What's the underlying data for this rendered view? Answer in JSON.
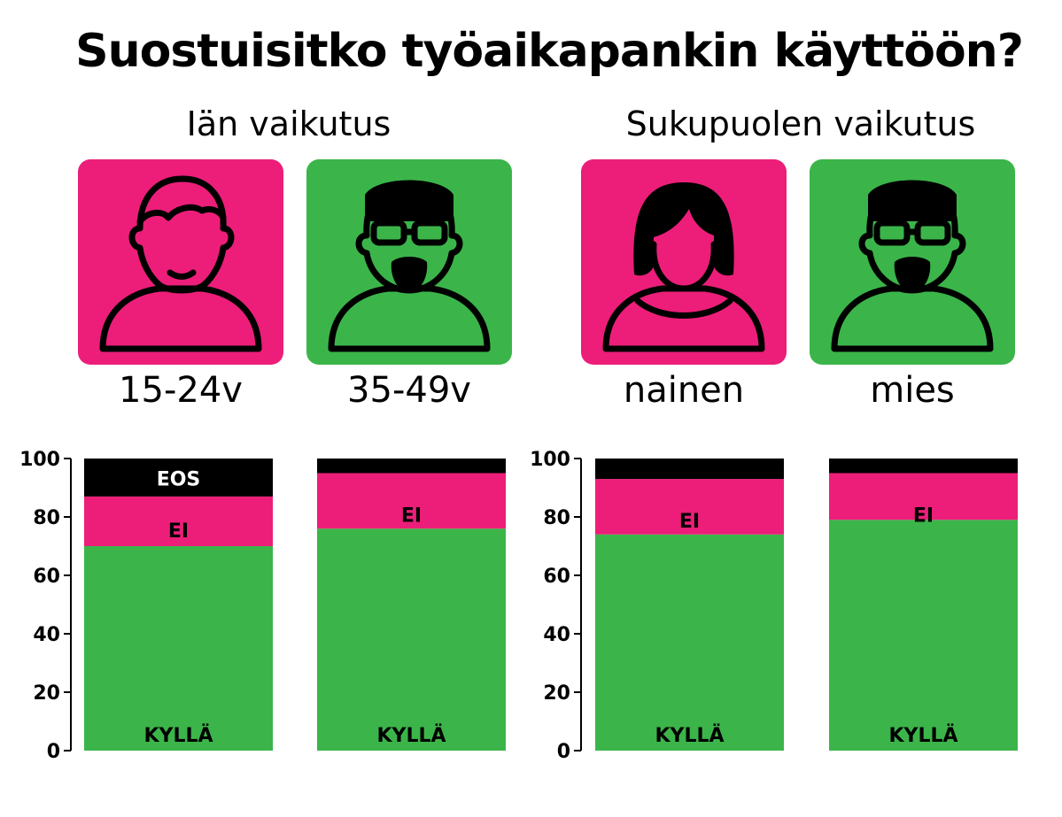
{
  "title": "Suostuisitko työaikapankin käyttöön?",
  "sections": [
    {
      "title": "Iän vaikutus"
    },
    {
      "title": "Sukupuolen vaikutus"
    }
  ],
  "groups": [
    {
      "label": "15-24v",
      "icon": "young-person-icon",
      "color": "#ec1e79"
    },
    {
      "label": "35-49v",
      "icon": "bearded-man-glasses-icon",
      "color": "#3bb54a"
    },
    {
      "label": "nainen",
      "icon": "woman-icon",
      "color": "#ec1e79"
    },
    {
      "label": "mies",
      "icon": "bearded-man-glasses-icon",
      "color": "#3bb54a"
    }
  ],
  "colors": {
    "kylla": "#3bb54a",
    "ei": "#ec1e79",
    "eos": "#000000"
  },
  "chart_data": {
    "type": "bar",
    "stacked": true,
    "categories": [
      "15-24v",
      "35-49v",
      "nainen",
      "mies"
    ],
    "series": [
      {
        "name": "KYLLÄ",
        "values": [
          70,
          76,
          74,
          79
        ]
      },
      {
        "name": "EI",
        "values": [
          17,
          19,
          19,
          16
        ]
      },
      {
        "name": "EOS",
        "values": [
          13,
          5,
          7,
          5
        ]
      }
    ],
    "segment_labels": [
      [
        "KYLLÄ",
        "EI",
        "EOS"
      ],
      [
        "KYLLÄ",
        "EI",
        ""
      ],
      [
        "KYLLÄ",
        "EI",
        ""
      ],
      [
        "KYLLÄ",
        "EI",
        ""
      ]
    ],
    "ylim": [
      0,
      100
    ],
    "yticks": [
      "0",
      "20",
      "40",
      "60",
      "80",
      "100"
    ],
    "grid": false
  }
}
